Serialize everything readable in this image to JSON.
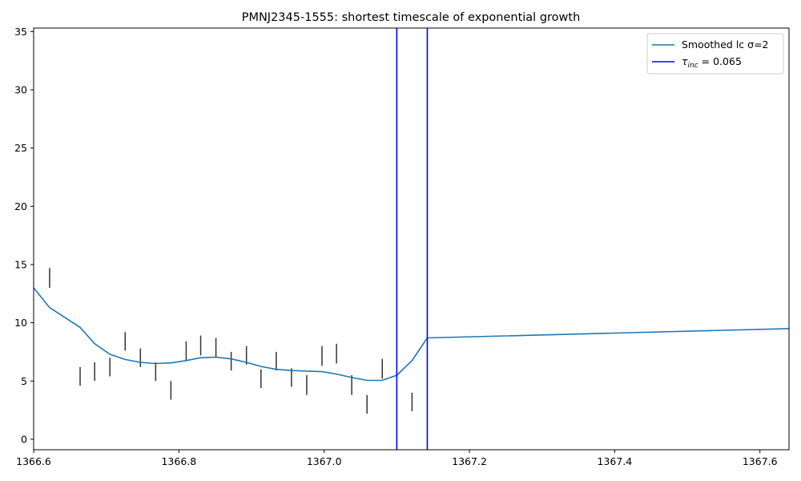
{
  "chart_data": {
    "type": "line",
    "title": "PMNJ2345-1555: shortest timescale of exponential growth",
    "xlabel": "",
    "ylabel": "",
    "xlim": [
      1366.6,
      1367.64
    ],
    "ylim": [
      -0.9,
      35.3
    ],
    "xticks": [
      1366.6,
      1366.8,
      1367.0,
      1367.2,
      1367.4,
      1367.6
    ],
    "xtick_labels": [
      "1366.6",
      "1366.8",
      "1367.0",
      "1367.2",
      "1367.4",
      "1367.6"
    ],
    "yticks": [
      0,
      5,
      10,
      15,
      20,
      25,
      30,
      35
    ],
    "ytick_labels": [
      "0",
      "5",
      "10",
      "15",
      "20",
      "25",
      "30",
      "35"
    ],
    "grid": false,
    "legend_position": "top-right",
    "series": [
      {
        "name": "Smoothed lc σ=2",
        "color": "#1f77b4",
        "style": "line",
        "x": [
          1366.6,
          1366.622,
          1366.643,
          1366.664,
          1366.684,
          1366.705,
          1366.726,
          1366.747,
          1366.768,
          1366.789,
          1366.81,
          1366.83,
          1366.851,
          1366.872,
          1366.893,
          1366.913,
          1366.934,
          1366.955,
          1366.976,
          1366.997,
          1367.017,
          1367.038,
          1367.059,
          1367.08,
          1367.1,
          1367.121,
          1367.142,
          1367.64
        ],
        "y": [
          13.0,
          11.3,
          10.45,
          9.6,
          8.2,
          7.3,
          6.85,
          6.6,
          6.5,
          6.55,
          6.75,
          7.0,
          7.05,
          6.9,
          6.6,
          6.25,
          6.0,
          5.9,
          5.85,
          5.8,
          5.6,
          5.3,
          5.05,
          5.05,
          5.5,
          6.75,
          8.7,
          9.5
        ]
      }
    ],
    "error_bars": {
      "color": "#333333",
      "points": [
        {
          "x": 1366.622,
          "y_low": 13.0,
          "y_high": 14.7
        },
        {
          "x": 1366.664,
          "y_low": 4.6,
          "y_high": 6.2
        },
        {
          "x": 1366.684,
          "y_low": 5.0,
          "y_high": 6.6
        },
        {
          "x": 1366.705,
          "y_low": 5.4,
          "y_high": 7.0
        },
        {
          "x": 1366.726,
          "y_low": 7.6,
          "y_high": 9.2
        },
        {
          "x": 1366.747,
          "y_low": 6.2,
          "y_high": 7.8
        },
        {
          "x": 1366.768,
          "y_low": 5.0,
          "y_high": 6.6
        },
        {
          "x": 1366.789,
          "y_low": 3.4,
          "y_high": 5.0
        },
        {
          "x": 1366.81,
          "y_low": 6.7,
          "y_high": 8.4
        },
        {
          "x": 1366.83,
          "y_low": 7.2,
          "y_high": 8.9
        },
        {
          "x": 1366.851,
          "y_low": 7.0,
          "y_high": 8.7
        },
        {
          "x": 1366.872,
          "y_low": 5.9,
          "y_high": 7.5
        },
        {
          "x": 1366.893,
          "y_low": 6.4,
          "y_high": 8.0
        },
        {
          "x": 1366.913,
          "y_low": 4.4,
          "y_high": 6.0
        },
        {
          "x": 1366.934,
          "y_low": 5.9,
          "y_high": 7.5
        },
        {
          "x": 1366.955,
          "y_low": 4.5,
          "y_high": 6.1
        },
        {
          "x": 1366.976,
          "y_low": 3.8,
          "y_high": 5.5
        },
        {
          "x": 1366.997,
          "y_low": 6.3,
          "y_high": 8.0
        },
        {
          "x": 1367.017,
          "y_low": 6.5,
          "y_high": 8.2
        },
        {
          "x": 1367.038,
          "y_low": 3.8,
          "y_high": 5.5
        },
        {
          "x": 1367.059,
          "y_low": 2.2,
          "y_high": 3.8
        },
        {
          "x": 1367.08,
          "y_low": 5.2,
          "y_high": 6.9
        },
        {
          "x": 1367.121,
          "y_low": 2.4,
          "y_high": 4.0
        }
      ]
    },
    "vlines": {
      "name": "τinc = 0.065",
      "color": "#0000ff",
      "x": [
        1367.1,
        1367.142
      ]
    },
    "legend": [
      {
        "label": "Smoothed lc σ=2",
        "color": "#1f77b4"
      },
      {
        "label_symbol": "τ",
        "label_sub": "inc",
        "label_rest": " = 0.065",
        "color": "#0000ff"
      }
    ]
  }
}
